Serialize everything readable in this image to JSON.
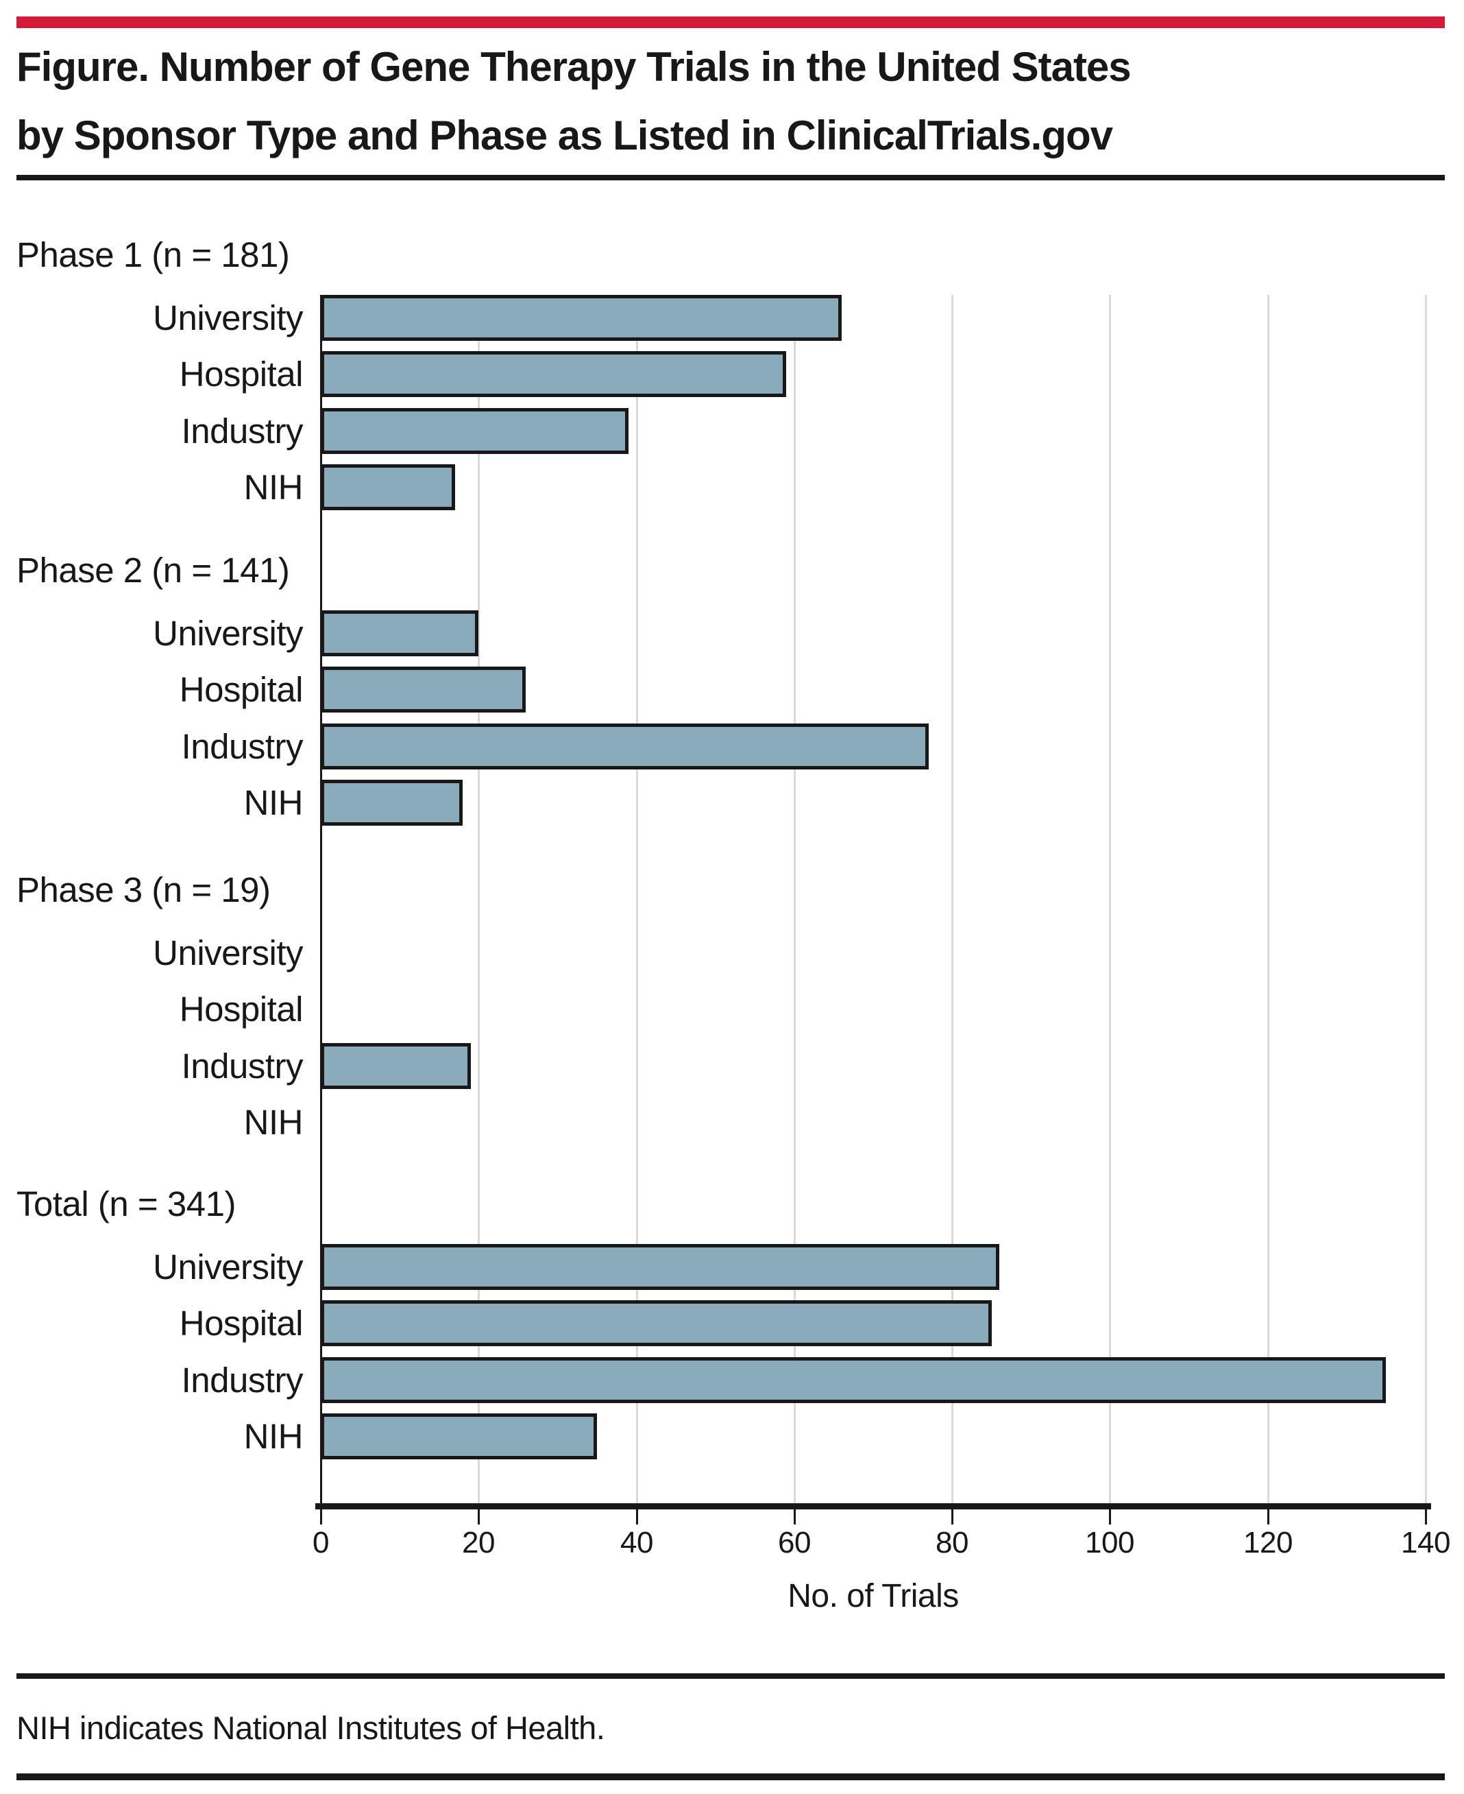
{
  "figure": {
    "title_line1": "Figure. Number of Gene Therapy Trials in the United States",
    "title_line2": "by Sponsor Type and Phase as Listed in ClinicalTrials.gov",
    "footnote": "NIH indicates National Institutes of Health.",
    "accent_color": "#d31a3a"
  },
  "chart_data": {
    "type": "bar",
    "orientation": "horizontal",
    "title": "Number of Gene Therapy Trials in the United States by Sponsor Type and Phase as Listed in ClinicalTrials.gov",
    "xlabel": "No. of Trials",
    "ylabel": "",
    "xlim": [
      0,
      140
    ],
    "xticks": [
      0,
      20,
      40,
      60,
      80,
      100,
      120,
      140
    ],
    "grid": true,
    "gridline_color": "#d9d9d9",
    "bar_color": "#8aabb9",
    "bar_border_color": "#1a1718",
    "categories": [
      "University",
      "Hospital",
      "Industry",
      "NIH"
    ],
    "groups": [
      {
        "label": "Phase 1 (n = 181)",
        "n": 181,
        "values": [
          66,
          59,
          39,
          17
        ]
      },
      {
        "label": "Phase 2 (n = 141)",
        "n": 141,
        "values": [
          20,
          26,
          77,
          18
        ]
      },
      {
        "label": "Phase 3 (n = 19)",
        "n": 19,
        "values": [
          0,
          0,
          19,
          0
        ]
      },
      {
        "label": "Total (n = 341)",
        "n": 341,
        "values": [
          86,
          85,
          135,
          35
        ]
      }
    ]
  }
}
